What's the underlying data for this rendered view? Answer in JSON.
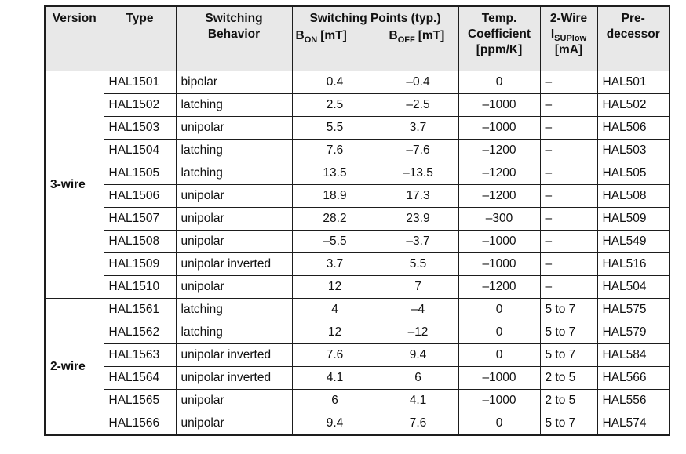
{
  "colors": {
    "header_bg": "#e8e8e8",
    "type_column_bg": "#e8e8e8",
    "border": "#1d1d1d",
    "text": "#111111",
    "page_bg": "#ffffff"
  },
  "header": {
    "version": "Version",
    "type": "Type",
    "behavior": [
      "Switching",
      "Behavior"
    ],
    "points_title": "Switching Points (typ.)",
    "b_on": {
      "base": "B",
      "sub": "ON",
      "unit": "[mT]"
    },
    "b_off": {
      "base": "B",
      "sub": "OFF",
      "unit": "[mT]"
    },
    "temp": [
      "Temp.",
      "Coefficient",
      "[ppm/K]"
    ],
    "wire": {
      "line1": "2-Wire",
      "base": "I",
      "sub": "SUPlow",
      "unit": "[mA]"
    },
    "predecessor": [
      "Pre-",
      "decessor"
    ]
  },
  "groups": [
    {
      "version": "3-wire",
      "rows": [
        {
          "type": "HAL1501",
          "behavior": "bipolar",
          "b_on": "0.4",
          "b_off": "–0.4",
          "temp_coeff": "0",
          "i_sup": "–",
          "predecessor": "HAL501"
        },
        {
          "type": "HAL1502",
          "behavior": "latching",
          "b_on": "2.5",
          "b_off": "–2.5",
          "temp_coeff": "–1000",
          "i_sup": "–",
          "predecessor": "HAL502"
        },
        {
          "type": "HAL1503",
          "behavior": "unipolar",
          "b_on": "5.5",
          "b_off": "3.7",
          "temp_coeff": "–1000",
          "i_sup": "–",
          "predecessor": "HAL506"
        },
        {
          "type": "HAL1504",
          "behavior": "latching",
          "b_on": "7.6",
          "b_off": "–7.6",
          "temp_coeff": "–1200",
          "i_sup": "–",
          "predecessor": "HAL503"
        },
        {
          "type": "HAL1505",
          "behavior": "latching",
          "b_on": "13.5",
          "b_off": "–13.5",
          "temp_coeff": "–1200",
          "i_sup": "–",
          "predecessor": "HAL505"
        },
        {
          "type": "HAL1506",
          "behavior": "unipolar",
          "b_on": "18.9",
          "b_off": "17.3",
          "temp_coeff": "–1200",
          "i_sup": "–",
          "predecessor": "HAL508"
        },
        {
          "type": "HAL1507",
          "behavior": "unipolar",
          "b_on": "28.2",
          "b_off": "23.9",
          "temp_coeff": "–300",
          "i_sup": "–",
          "predecessor": "HAL509"
        },
        {
          "type": "HAL1508",
          "behavior": "unipolar",
          "b_on": "–5.5",
          "b_off": "–3.7",
          "temp_coeff": "–1000",
          "i_sup": "–",
          "predecessor": "HAL549"
        },
        {
          "type": "HAL1509",
          "behavior": "unipolar inverted",
          "b_on": "3.7",
          "b_off": "5.5",
          "temp_coeff": "–1000",
          "i_sup": "–",
          "predecessor": "HAL516"
        },
        {
          "type": "HAL1510",
          "behavior": "unipolar",
          "b_on": "12",
          "b_off": "7",
          "temp_coeff": "–1200",
          "i_sup": "–",
          "predecessor": "HAL504"
        }
      ]
    },
    {
      "version": "2-wire",
      "rows": [
        {
          "type": "HAL1561",
          "behavior": "latching",
          "b_on": "4",
          "b_off": "–4",
          "temp_coeff": "0",
          "i_sup": "5 to 7",
          "predecessor": "HAL575"
        },
        {
          "type": "HAL1562",
          "behavior": "latching",
          "b_on": "12",
          "b_off": "–12",
          "temp_coeff": "0",
          "i_sup": "5 to 7",
          "predecessor": "HAL579"
        },
        {
          "type": "HAL1563",
          "behavior": "unipolar inverted",
          "b_on": "7.6",
          "b_off": "9.4",
          "temp_coeff": "0",
          "i_sup": "5 to 7",
          "predecessor": "HAL584"
        },
        {
          "type": "HAL1564",
          "behavior": "unipolar inverted",
          "b_on": "4.1",
          "b_off": "6",
          "temp_coeff": "–1000",
          "i_sup": "2 to 5",
          "predecessor": "HAL566"
        },
        {
          "type": "HAL1565",
          "behavior": "unipolar",
          "b_on": "6",
          "b_off": "4.1",
          "temp_coeff": "–1000",
          "i_sup": "2 to 5",
          "predecessor": "HAL556"
        },
        {
          "type": "HAL1566",
          "behavior": "unipolar",
          "b_on": "9.4",
          "b_off": "7.6",
          "temp_coeff": "0",
          "i_sup": "5 to 7",
          "predecessor": "HAL574"
        }
      ]
    }
  ]
}
